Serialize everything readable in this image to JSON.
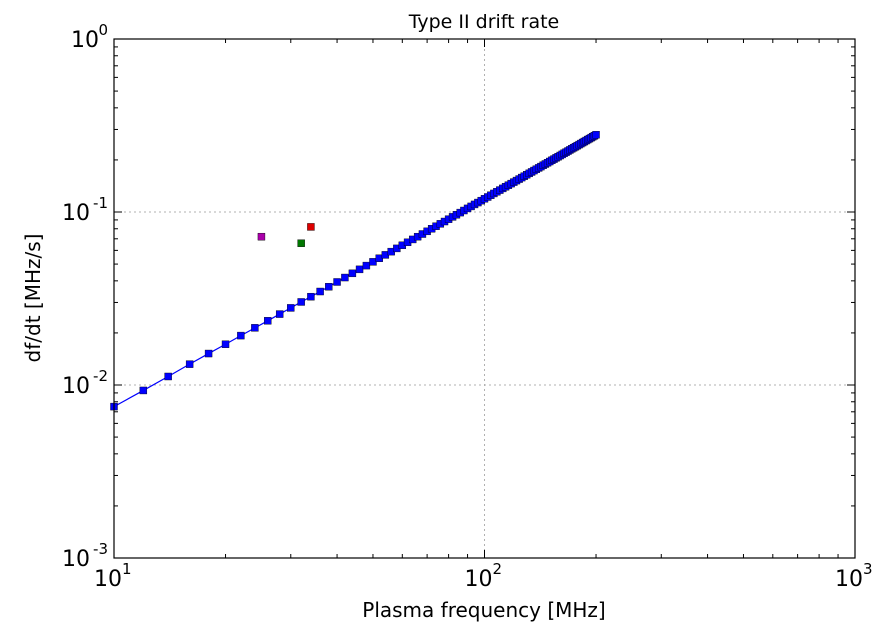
{
  "chart_data": {
    "type": "scatter",
    "title": "Type II drift rate",
    "xlabel": "Plasma frequency [MHz]",
    "ylabel": "df/dt [MHz/s]",
    "xscale": "log",
    "yscale": "log",
    "xlim": [
      10,
      1000
    ],
    "ylim": [
      0.001,
      1
    ],
    "grid": true,
    "x_ticks": [
      {
        "value": 10,
        "base": "10",
        "exp": "1"
      },
      {
        "value": 100,
        "base": "10",
        "exp": "2"
      },
      {
        "value": 1000,
        "base": "10",
        "exp": "3"
      }
    ],
    "y_ticks": [
      {
        "value": 0.001,
        "base": "10",
        "exp": "-3"
      },
      {
        "value": 0.01,
        "base": "10",
        "exp": "-2"
      },
      {
        "value": 0.1,
        "base": "10",
        "exp": "-1"
      },
      {
        "value": 1,
        "base": "10",
        "exp": "0"
      }
    ],
    "series": [
      {
        "color": "#0000ff",
        "marker": "square",
        "line": true,
        "x": [
          10,
          12,
          14,
          16,
          18,
          20,
          22,
          24,
          26,
          28,
          30,
          32,
          34,
          36,
          38,
          40,
          42,
          44,
          46,
          48,
          50,
          52,
          54,
          56,
          58,
          60,
          62,
          64,
          66,
          68,
          70,
          72,
          74,
          76,
          78,
          80,
          82,
          84,
          86,
          88,
          90,
          92,
          94,
          96,
          98,
          100,
          102,
          104,
          106,
          108,
          110,
          112,
          114,
          116,
          118,
          120,
          122,
          124,
          126,
          128,
          130,
          132,
          134,
          136,
          138,
          140,
          142,
          144,
          146,
          148,
          150,
          152,
          154,
          156,
          158,
          160,
          162,
          164,
          166,
          168,
          170,
          172,
          174,
          176,
          178,
          180,
          182,
          184,
          186,
          188,
          190,
          192,
          194,
          196,
          198,
          200
        ],
        "y": [
          0.0075,
          0.0093,
          0.0112,
          0.0132,
          0.0152,
          0.0172,
          0.0193,
          0.0214,
          0.0235,
          0.0257,
          0.0279,
          0.0302,
          0.0324,
          0.0347,
          0.037,
          0.0394,
          0.0418,
          0.0442,
          0.0466,
          0.049,
          0.0515,
          0.054,
          0.0565,
          0.059,
          0.0616,
          0.0642,
          0.0668,
          0.0694,
          0.072,
          0.0746,
          0.0773,
          0.08,
          0.0827,
          0.0854,
          0.0881,
          0.0909,
          0.0937,
          0.0964,
          0.0992,
          0.102,
          0.1049,
          0.1077,
          0.1106,
          0.1134,
          0.1163,
          0.1192,
          0.1221,
          0.125,
          0.128,
          0.1309,
          0.1339,
          0.1369,
          0.1399,
          0.1429,
          0.1459,
          0.1489,
          0.1519,
          0.155,
          0.1581,
          0.1611,
          0.1642,
          0.1673,
          0.1704,
          0.1736,
          0.1767,
          0.1798,
          0.183,
          0.1862,
          0.1894,
          0.1926,
          0.1958,
          0.199,
          0.2022,
          0.2055,
          0.2087,
          0.212,
          0.2152,
          0.2185,
          0.2218,
          0.2251,
          0.2284,
          0.2318,
          0.2351,
          0.2385,
          0.2418,
          0.2452,
          0.2486,
          0.252,
          0.2554,
          0.2588,
          0.2622,
          0.2656,
          0.2691,
          0.2725,
          0.276,
          0.2795
        ]
      },
      {
        "color": "#aa00aa",
        "marker": "square",
        "line": false,
        "x": [
          25
        ],
        "y": [
          0.072
        ]
      },
      {
        "color": "#dd0000",
        "marker": "square",
        "line": false,
        "x": [
          34
        ],
        "y": [
          0.082
        ]
      },
      {
        "color": "#007700",
        "marker": "square",
        "line": false,
        "x": [
          32
        ],
        "y": [
          0.066
        ]
      }
    ]
  }
}
